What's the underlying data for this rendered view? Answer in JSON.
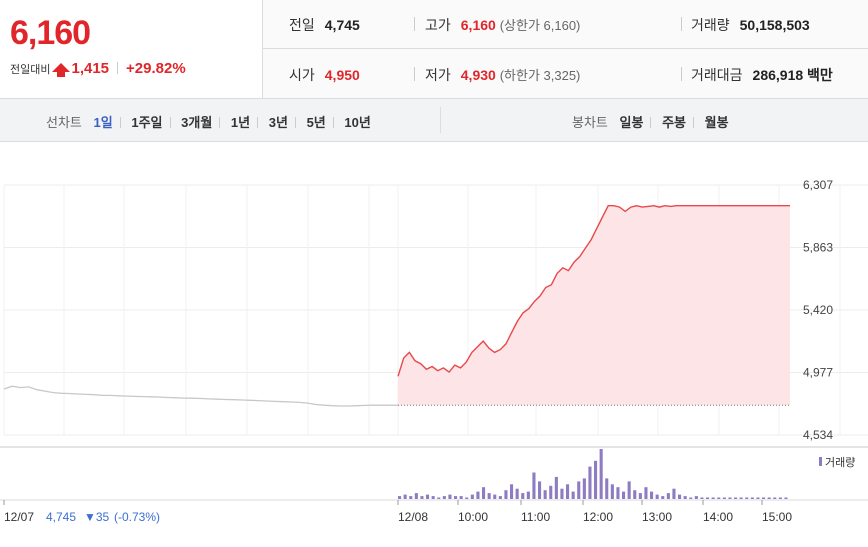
{
  "quote": {
    "price": "6,160",
    "change_label": "전일대비",
    "change": "1,415",
    "change_pct": "+29.82%",
    "up_color": "#e0262a"
  },
  "info": {
    "prev_close": {
      "label": "전일",
      "value": "4,745"
    },
    "high": {
      "label": "고가",
      "value": "6,160",
      "note": "(상한가 6,160)"
    },
    "volume": {
      "label": "거래량",
      "value": "50,158,503"
    },
    "open": {
      "label": "시가",
      "value": "4,950"
    },
    "low": {
      "label": "저가",
      "value": "4,930",
      "note": "(하한가 3,325)"
    },
    "amount": {
      "label": "거래대금",
      "value": "286,918",
      "unit": "백만"
    }
  },
  "tabs": {
    "line_title": "선차트",
    "line_options": [
      "1일",
      "1주일",
      "3개월",
      "1년",
      "3년",
      "5년",
      "10년"
    ],
    "selected": "1일",
    "candle_title": "봉차트",
    "candle_options": [
      "일봉",
      "주봉",
      "월봉"
    ]
  },
  "chart_data": {
    "type": "area",
    "y_ticks": [
      "6,307",
      "5,863",
      "5,420",
      "4,977",
      "4,534"
    ],
    "ylim": [
      4534,
      6307
    ],
    "x_labels": [
      "12/07",
      "12/08",
      "10:00",
      "11:00",
      "12:00",
      "13:00",
      "14:00",
      "15:00"
    ],
    "prev_day_label": "12/07",
    "prev_day_close": "4,745",
    "prev_day_change": "▼35",
    "prev_day_change_pct": "(-0.73%)",
    "baseline": 4745,
    "volume_legend": "거래량",
    "series": [
      {
        "day": "12/07",
        "color": "#c8c8c8",
        "values": [
          4860,
          4880,
          4870,
          4875,
          4855,
          4845,
          4835,
          4830,
          4828,
          4825,
          4822,
          4820,
          4815,
          4815,
          4812,
          4810,
          4808,
          4806,
          4805,
          4803,
          4800,
          4798,
          4796,
          4795,
          4793,
          4790,
          4788,
          4786,
          4784,
          4782,
          4780,
          4778,
          4775,
          4772,
          4770,
          4768,
          4765,
          4760,
          4750,
          4745,
          4742,
          4740,
          4740,
          4742,
          4744,
          4745,
          4745,
          4745,
          4745
        ]
      },
      {
        "day": "12/08",
        "color": "#e8484b",
        "fill": "#fde4e6",
        "values": [
          4950,
          5080,
          5120,
          5060,
          5040,
          5000,
          5020,
          4990,
          5010,
          4980,
          5030,
          5010,
          5050,
          5120,
          5160,
          5200,
          5150,
          5120,
          5140,
          5180,
          5260,
          5340,
          5400,
          5430,
          5480,
          5520,
          5580,
          5600,
          5680,
          5720,
          5700,
          5760,
          5800,
          5860,
          5920,
          6000,
          6080,
          6160,
          6160,
          6150,
          6120,
          6150,
          6160,
          6150,
          6155,
          6160,
          6150,
          6160,
          6155,
          6160,
          6160,
          6160,
          6160,
          6160,
          6160,
          6160,
          6160,
          6160,
          6160,
          6160,
          6160,
          6160,
          6160,
          6160,
          6160,
          6160,
          6160,
          6160,
          6160,
          6160
        ]
      }
    ],
    "volume": {
      "color": "#8e7cc3",
      "values": [
        2,
        3,
        2,
        4,
        2,
        3,
        2,
        1,
        2,
        3,
        2,
        2,
        1,
        3,
        5,
        8,
        4,
        3,
        2,
        6,
        10,
        7,
        4,
        5,
        18,
        12,
        6,
        9,
        15,
        7,
        10,
        5,
        12,
        14,
        22,
        26,
        34,
        14,
        10,
        8,
        5,
        12,
        6,
        4,
        8,
        5,
        3,
        2,
        4,
        7,
        3,
        2,
        1,
        2,
        1,
        1,
        1,
        1,
        1,
        1,
        1,
        1,
        1,
        1,
        1,
        1,
        1,
        1,
        1,
        1
      ]
    }
  }
}
